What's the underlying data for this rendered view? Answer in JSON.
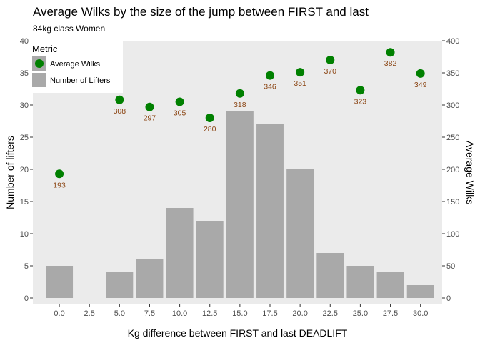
{
  "chart_data": {
    "type": "bar",
    "title": "Average Wilks by the size of the jump between FIRST and last",
    "subtitle": "84kg class Women",
    "xlabel": "Kg difference between FIRST and last DEADLIFT",
    "ylabel_left": "Number of lifters",
    "ylabel_right": "Average Wilks",
    "xlim": [
      -2.2,
      31.8
    ],
    "ylim_left": [
      -1,
      40
    ],
    "ylim_right": [
      -10,
      400
    ],
    "x_ticks": [
      "0.0",
      "2.5",
      "5.0",
      "7.5",
      "10.0",
      "12.5",
      "15.0",
      "17.5",
      "20.0",
      "22.5",
      "25.0",
      "27.5",
      "30.0"
    ],
    "y_ticks_left": [
      "0",
      "5",
      "10",
      "15",
      "20",
      "25",
      "30",
      "35",
      "40"
    ],
    "y_ticks_right": [
      "0",
      "50",
      "100",
      "150",
      "200",
      "250",
      "300",
      "350",
      "400"
    ],
    "grid": false,
    "legend_position": "top-left",
    "legend": {
      "title": "Metric",
      "items": [
        {
          "label": "Average Wilks",
          "shape": "point",
          "color": "#008000"
        },
        {
          "label": "Number of Lifters",
          "shape": "bar",
          "color": "#a9a9a9"
        }
      ]
    },
    "series": [
      {
        "name": "Number of Lifters",
        "type": "bar",
        "axis": "left",
        "color": "#a9a9a9",
        "x": [
          0,
          5,
          7.5,
          10,
          12.5,
          15,
          17.5,
          20,
          22.5,
          25,
          27.5,
          30
        ],
        "values": [
          5,
          4,
          6,
          14,
          12,
          29,
          27,
          20,
          7,
          5,
          4,
          2
        ]
      },
      {
        "name": "Average Wilks",
        "type": "scatter",
        "axis": "right",
        "color": "#008000",
        "label_color": "#8b4513",
        "x": [
          0,
          5,
          7.5,
          10,
          12.5,
          15,
          17.5,
          20,
          22.5,
          25,
          27.5,
          30
        ],
        "values": [
          193,
          308,
          297,
          305,
          280,
          318,
          346,
          351,
          370,
          323,
          382,
          349
        ],
        "labels": [
          "193",
          "308",
          "297",
          "305",
          "280",
          "318",
          "346",
          "351",
          "370",
          "323",
          "382",
          "349"
        ]
      }
    ]
  }
}
